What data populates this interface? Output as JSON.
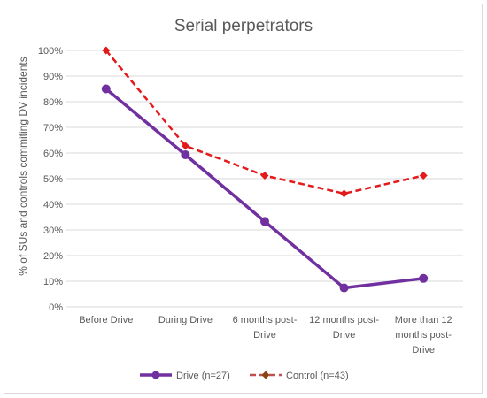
{
  "chart_data": {
    "type": "line",
    "title": "Serial perpetrators",
    "xlabel": "",
    "ylabel": "% of SUs and controls commiting  DV incidents",
    "ylim": [
      0,
      100
    ],
    "y_ticks": [
      "0%",
      "10%",
      "20%",
      "30%",
      "40%",
      "50%",
      "60%",
      "70%",
      "80%",
      "90%",
      "100%"
    ],
    "categories": [
      [
        "Before Drive"
      ],
      [
        "During Drive"
      ],
      [
        "6 months post-",
        "Drive"
      ],
      [
        "12 months post-",
        "Drive"
      ],
      [
        "More than 12",
        "months post-",
        "Drive"
      ]
    ],
    "grid": true,
    "legend_position": "bottom",
    "series": [
      {
        "name": "Drive (n=27)",
        "values": [
          85,
          59.3,
          33.3,
          7.4,
          11.1
        ],
        "color": "#7030a0",
        "style": "solid",
        "marker": "circle"
      },
      {
        "name": "Control (n=43)",
        "values": [
          100,
          62.8,
          51.2,
          44.2,
          51.2
        ],
        "color": "#e31a1c",
        "style": "dashed",
        "marker": "diamond"
      }
    ]
  },
  "colors": {
    "grid": "#d9d9d9",
    "text": "#595959",
    "legend_control_marker": "#8b4513",
    "legend_control_line": "#c0504d"
  }
}
